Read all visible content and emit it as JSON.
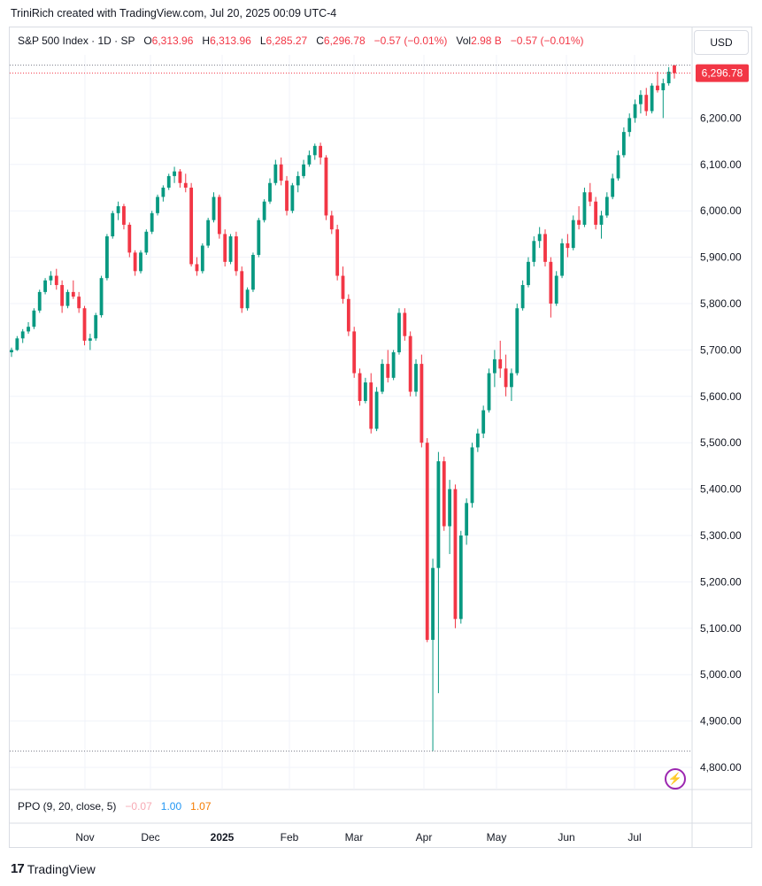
{
  "header": {
    "credit": "TriniRich created with TradingView.com, Jul 20, 2025 00:09 UTC-4"
  },
  "legend": {
    "symbol": "S&P 500 Index · 1D · SP",
    "o_label": "O",
    "o_value": "6,313.96",
    "h_label": "H",
    "h_value": "6,313.96",
    "l_label": "L",
    "l_value": "6,285.27",
    "c_label": "C",
    "c_value": "6,296.78",
    "change": "−0.57 (−0.01%)",
    "vol_label": "Vol",
    "vol_value": "2.98 B",
    "vol_change": "−0.57 (−0.01%)"
  },
  "currency_button": "USD",
  "price_tag": "6,296.78",
  "indicator": {
    "name": "PPO (9, 20, close, 5)",
    "v1": "−0.07",
    "v2": "1.00",
    "v3": "1.07"
  },
  "footer": {
    "brand": "TradingView",
    "brand_logo": "17"
  },
  "colors": {
    "up": "#089981",
    "down": "#f23645",
    "grid": "#f0f3fa",
    "axis_text": "#131722"
  },
  "chart_data": {
    "type": "candlestick",
    "title": "S&P 500 Index · 1D · SP",
    "y_ticks": [
      4800,
      4900,
      5000,
      5100,
      5200,
      5300,
      5400,
      5500,
      5600,
      5700,
      5800,
      5900,
      6000,
      6100,
      6200
    ],
    "y_tick_labels": [
      "4,800.00",
      "4,900.00",
      "5,000.00",
      "5,100.00",
      "5,200.00",
      "5,300.00",
      "5,400.00",
      "5,500.00",
      "5,600.00",
      "5,700.00",
      "5,800.00",
      "5,900.00",
      "6,000.00",
      "6,100.00",
      "6,200.00"
    ],
    "ylim": [
      4780,
      6330
    ],
    "x_labels": [
      "Nov",
      "Dec",
      "2025",
      "Feb",
      "Mar",
      "Apr",
      "May",
      "Jun",
      "Jul"
    ],
    "last_price": 6296.78,
    "period_low": 4835.04,
    "candles": [
      [
        5695,
        5705,
        5685,
        5700
      ],
      [
        5700,
        5730,
        5698,
        5725
      ],
      [
        5725,
        5745,
        5715,
        5740
      ],
      [
        5740,
        5760,
        5735,
        5750
      ],
      [
        5750,
        5790,
        5745,
        5785
      ],
      [
        5785,
        5830,
        5780,
        5825
      ],
      [
        5825,
        5855,
        5820,
        5850
      ],
      [
        5850,
        5870,
        5840,
        5860
      ],
      [
        5860,
        5875,
        5830,
        5840
      ],
      [
        5840,
        5850,
        5780,
        5795
      ],
      [
        5795,
        5830,
        5790,
        5825
      ],
      [
        5825,
        5850,
        5810,
        5815
      ],
      [
        5815,
        5825,
        5780,
        5790
      ],
      [
        5790,
        5795,
        5710,
        5720
      ],
      [
        5720,
        5735,
        5700,
        5725
      ],
      [
        5725,
        5780,
        5720,
        5775
      ],
      [
        5775,
        5860,
        5770,
        5855
      ],
      [
        5855,
        5950,
        5850,
        5945
      ],
      [
        5945,
        6000,
        5940,
        5995
      ],
      [
        5995,
        6020,
        5980,
        6010
      ],
      [
        6010,
        6015,
        5960,
        5970
      ],
      [
        5970,
        5975,
        5900,
        5910
      ],
      [
        5910,
        5915,
        5860,
        5870
      ],
      [
        5870,
        5915,
        5865,
        5910
      ],
      [
        5910,
        5960,
        5905,
        5955
      ],
      [
        5955,
        6000,
        5950,
        5995
      ],
      [
        5995,
        6035,
        5990,
        6030
      ],
      [
        6030,
        6055,
        6020,
        6050
      ],
      [
        6050,
        6080,
        6045,
        6075
      ],
      [
        6075,
        6095,
        6060,
        6085
      ],
      [
        6085,
        6090,
        6050,
        6060
      ],
      [
        6060,
        6080,
        6040,
        6050
      ],
      [
        6050,
        6060,
        5880,
        5885
      ],
      [
        5885,
        5900,
        5860,
        5870
      ],
      [
        5870,
        5930,
        5865,
        5925
      ],
      [
        5925,
        5985,
        5920,
        5980
      ],
      [
        5980,
        6040,
        5975,
        6030
      ],
      [
        6030,
        6035,
        5940,
        5950
      ],
      [
        5950,
        5960,
        5880,
        5890
      ],
      [
        5890,
        5950,
        5885,
        5945
      ],
      [
        5945,
        5955,
        5860,
        5870
      ],
      [
        5870,
        5880,
        5780,
        5790
      ],
      [
        5790,
        5835,
        5785,
        5830
      ],
      [
        5830,
        5910,
        5825,
        5905
      ],
      [
        5905,
        5985,
        5900,
        5980
      ],
      [
        5980,
        6025,
        5975,
        6020
      ],
      [
        6020,
        6070,
        6015,
        6060
      ],
      [
        6060,
        6110,
        6055,
        6100
      ],
      [
        6100,
        6115,
        6055,
        6065
      ],
      [
        6065,
        6075,
        5990,
        6000
      ],
      [
        6000,
        6060,
        5995,
        6055
      ],
      [
        6055,
        6085,
        6040,
        6075
      ],
      [
        6075,
        6110,
        6070,
        6100
      ],
      [
        6100,
        6130,
        6095,
        6120
      ],
      [
        6120,
        6145,
        6110,
        6140
      ],
      [
        6140,
        6147,
        6100,
        6115
      ],
      [
        6115,
        6120,
        5980,
        5990
      ],
      [
        5990,
        6000,
        5950,
        5960
      ],
      [
        5960,
        5970,
        5850,
        5860
      ],
      [
        5860,
        5880,
        5800,
        5810
      ],
      [
        5810,
        5820,
        5730,
        5740
      ],
      [
        5740,
        5750,
        5640,
        5650
      ],
      [
        5650,
        5660,
        5580,
        5590
      ],
      [
        5590,
        5640,
        5585,
        5630
      ],
      [
        5630,
        5650,
        5520,
        5530
      ],
      [
        5530,
        5620,
        5525,
        5610
      ],
      [
        5610,
        5680,
        5605,
        5670
      ],
      [
        5670,
        5700,
        5630,
        5640
      ],
      [
        5640,
        5700,
        5635,
        5695
      ],
      [
        5695,
        5790,
        5690,
        5780
      ],
      [
        5780,
        5790,
        5720,
        5730
      ],
      [
        5730,
        5740,
        5600,
        5610
      ],
      [
        5610,
        5680,
        5600,
        5670
      ],
      [
        5670,
        5690,
        5490,
        5500
      ],
      [
        5500,
        5510,
        5070,
        5075
      ],
      [
        5075,
        5250,
        4835,
        5230
      ],
      [
        5230,
        5480,
        4960,
        5460
      ],
      [
        5460,
        5470,
        5310,
        5320
      ],
      [
        5320,
        5420,
        5260,
        5400
      ],
      [
        5400,
        5410,
        5100,
        5120
      ],
      [
        5120,
        5310,
        5110,
        5300
      ],
      [
        5300,
        5380,
        5280,
        5370
      ],
      [
        5370,
        5500,
        5360,
        5490
      ],
      [
        5490,
        5530,
        5480,
        5520
      ],
      [
        5520,
        5580,
        5510,
        5570
      ],
      [
        5570,
        5660,
        5565,
        5650
      ],
      [
        5650,
        5700,
        5620,
        5680
      ],
      [
        5680,
        5720,
        5640,
        5660
      ],
      [
        5660,
        5690,
        5600,
        5620
      ],
      [
        5620,
        5660,
        5590,
        5650
      ],
      [
        5650,
        5800,
        5645,
        5790
      ],
      [
        5790,
        5850,
        5785,
        5840
      ],
      [
        5840,
        5900,
        5835,
        5890
      ],
      [
        5890,
        5945,
        5880,
        5935
      ],
      [
        5935,
        5965,
        5920,
        5950
      ],
      [
        5950,
        5960,
        5880,
        5890
      ],
      [
        5890,
        5900,
        5770,
        5800
      ],
      [
        5800,
        5870,
        5795,
        5860
      ],
      [
        5860,
        5940,
        5855,
        5930
      ],
      [
        5930,
        5950,
        5900,
        5920
      ],
      [
        5920,
        5990,
        5915,
        5980
      ],
      [
        5980,
        6010,
        5960,
        5970
      ],
      [
        5970,
        6050,
        5965,
        6040
      ],
      [
        6040,
        6060,
        6010,
        6020
      ],
      [
        6020,
        6030,
        5960,
        5970
      ],
      [
        5970,
        6000,
        5940,
        5990
      ],
      [
        5990,
        6040,
        5985,
        6030
      ],
      [
        6030,
        6080,
        6025,
        6070
      ],
      [
        6070,
        6130,
        6065,
        6120
      ],
      [
        6120,
        6180,
        6115,
        6170
      ],
      [
        6170,
        6210,
        6160,
        6200
      ],
      [
        6200,
        6240,
        6190,
        6230
      ],
      [
        6230,
        6260,
        6210,
        6250
      ],
      [
        6250,
        6265,
        6205,
        6215
      ],
      [
        6215,
        6275,
        6210,
        6270
      ],
      [
        6270,
        6300,
        6255,
        6260
      ],
      [
        6260,
        6285,
        6200,
        6275
      ],
      [
        6275,
        6310,
        6270,
        6300
      ],
      [
        6313.96,
        6313.96,
        6285.27,
        6296.78
      ]
    ]
  }
}
